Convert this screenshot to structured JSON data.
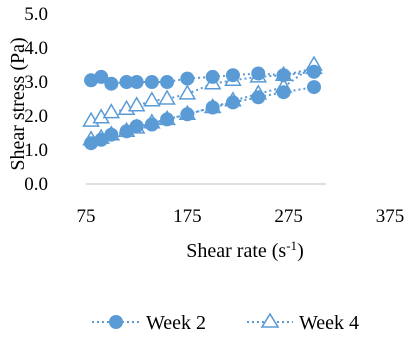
{
  "chart_data": {
    "type": "scatter",
    "title": "",
    "xlabel": "Shear rate (s",
    "xlabel_sup": "-1",
    "xlabel_suffix": ")",
    "ylabel": "Shear stress (Pa)",
    "xlim": [
      75,
      375
    ],
    "ylim": [
      0.0,
      5.0
    ],
    "xticks": [
      "75",
      "175",
      "275",
      "375"
    ],
    "yticks": [
      "0.0",
      "1.0",
      "2.0",
      "3.0",
      "4.0",
      "5.0"
    ],
    "grid": false,
    "legend_position": "bottom",
    "colors": {
      "marker": "#5b9bd5"
    },
    "series": [
      {
        "name": "Week 2",
        "marker": "filled-circle",
        "x": [
          80,
          90,
          100,
          115,
          125,
          140,
          155,
          175,
          200,
          220,
          245,
          270,
          300
        ],
        "y": [
          1.2,
          1.3,
          1.45,
          1.55,
          1.7,
          1.75,
          1.9,
          2.05,
          2.25,
          2.4,
          2.55,
          2.7,
          2.85
        ],
        "x2": [
          80,
          90,
          100,
          115,
          125,
          140,
          155,
          175,
          200,
          220,
          245,
          270,
          300
        ],
        "y2": [
          3.05,
          3.15,
          2.95,
          3.0,
          3.0,
          3.0,
          3.0,
          3.1,
          3.15,
          3.2,
          3.25,
          3.2,
          3.3
        ]
      },
      {
        "name": "Week 4",
        "marker": "open-triangle",
        "x": [
          80,
          90,
          100,
          115,
          125,
          140,
          155,
          175,
          200,
          220,
          245,
          270,
          300
        ],
        "y": [
          1.85,
          1.95,
          2.1,
          2.2,
          2.3,
          2.45,
          2.5,
          2.65,
          2.95,
          3.05,
          3.15,
          3.2,
          3.4
        ],
        "x2": [
          80,
          90,
          100,
          115,
          125,
          140,
          155,
          175,
          200,
          220,
          245,
          270,
          300
        ],
        "y2": [
          1.3,
          1.35,
          1.45,
          1.55,
          1.65,
          1.8,
          1.9,
          2.05,
          2.25,
          2.45,
          2.65,
          2.85,
          3.5
        ]
      }
    ]
  }
}
